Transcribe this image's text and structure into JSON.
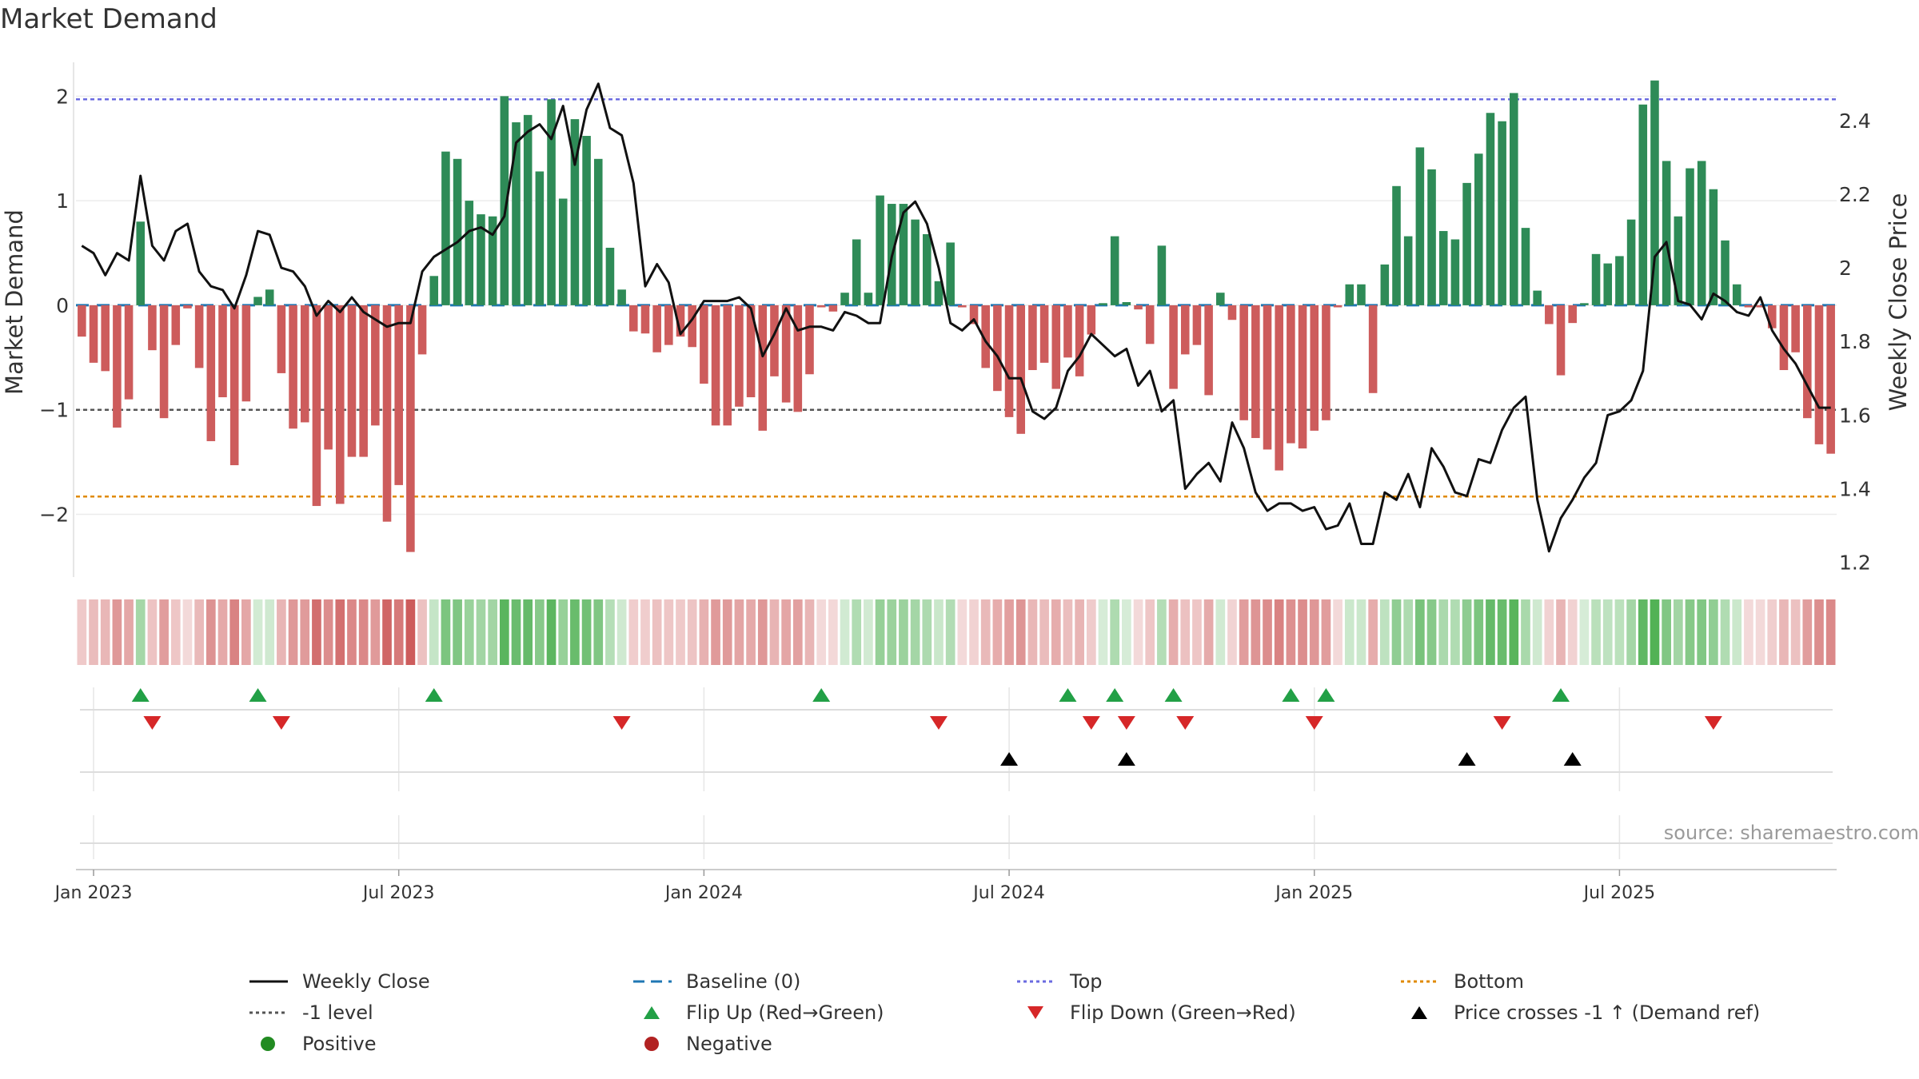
{
  "chart_data": {
    "type": "bar",
    "title": "Market Demand",
    "ylabel": "Market Demand",
    "y2label": "Weekly Close Price",
    "ylim": [
      -2.6,
      2.4
    ],
    "y2lim": [
      1.16,
      2.58
    ],
    "yticks": [
      "−2",
      "−1",
      "0",
      "1",
      "2"
    ],
    "y2ticks": [
      "1.2",
      "1.4",
      "1.6",
      "1.8",
      "2",
      "2.2",
      "2.4"
    ],
    "x_ticks": [
      "Jan 2023",
      "Jul 2023",
      "Jan 2024",
      "Jul 2024",
      "Jan 2025",
      "Jul 2025"
    ],
    "start_date": "2022-12-22",
    "reference_lines": {
      "top": 1.97,
      "baseline": 0,
      "minus_one": -1,
      "bottom": -1.83
    },
    "series": [
      {
        "name": "Market Demand",
        "values": [
          -0.3,
          -0.55,
          -0.63,
          -1.17,
          -0.9,
          0.8,
          -0.43,
          -1.08,
          -0.38,
          -0.03,
          -0.6,
          -1.3,
          -0.88,
          -1.53,
          -0.92,
          0.08,
          0.15,
          -0.65,
          -1.18,
          -1.12,
          -1.92,
          -1.38,
          -1.9,
          -1.45,
          -1.45,
          -1.15,
          -2.07,
          -1.72,
          -2.36,
          -0.47,
          0.28,
          1.47,
          1.4,
          1.0,
          0.87,
          0.85,
          2.0,
          1.75,
          1.82,
          1.28,
          1.97,
          1.02,
          1.78,
          1.62,
          1.4,
          0.55,
          0.15,
          -0.25,
          -0.27,
          -0.45,
          -0.38,
          -0.3,
          -0.4,
          -0.75,
          -1.15,
          -1.15,
          -0.97,
          -0.88,
          -1.2,
          -0.68,
          -0.93,
          -1.02,
          -0.66,
          -0.02,
          -0.06,
          0.12,
          0.63,
          0.12,
          1.05,
          0.97,
          0.97,
          0.82,
          0.68,
          0.23,
          0.6,
          -0.02,
          -0.18,
          -0.6,
          -0.82,
          -1.07,
          -1.23,
          -0.62,
          -0.55,
          -0.8,
          -0.5,
          -0.68,
          -0.28,
          0.02,
          0.66,
          0.03,
          -0.04,
          -0.37,
          0.57,
          -0.8,
          -0.47,
          -0.38,
          -0.86,
          0.12,
          -0.14,
          -1.1,
          -1.27,
          -1.38,
          -1.58,
          -1.32,
          -1.37,
          -1.2,
          -1.1,
          -0.02,
          0.2,
          0.2,
          -0.84,
          0.39,
          1.14,
          0.66,
          1.51,
          1.3,
          0.71,
          0.63,
          1.17,
          1.45,
          1.84,
          1.76,
          2.03,
          0.74,
          0.14,
          -0.18,
          -0.67,
          -0.17,
          0.02,
          0.49,
          0.4,
          0.47,
          0.82,
          1.92,
          2.15,
          1.38,
          0.85,
          1.31,
          1.38,
          1.11,
          0.62,
          0.2,
          -0.02,
          -0.02,
          -0.22,
          -0.62,
          -0.45,
          -1.08,
          -1.33,
          -1.42
        ]
      },
      {
        "name": "Weekly Close",
        "values": [
          2.06,
          2.04,
          1.98,
          2.04,
          2.02,
          2.25,
          2.06,
          2.02,
          2.1,
          2.12,
          1.99,
          1.95,
          1.94,
          1.89,
          1.98,
          2.1,
          2.09,
          2.0,
          1.99,
          1.95,
          1.87,
          1.91,
          1.88,
          1.92,
          1.88,
          1.86,
          1.84,
          1.85,
          1.85,
          1.99,
          2.03,
          2.05,
          2.07,
          2.1,
          2.11,
          2.09,
          2.14,
          2.34,
          2.37,
          2.39,
          2.35,
          2.44,
          2.28,
          2.43,
          2.5,
          2.38,
          2.36,
          2.23,
          1.95,
          2.01,
          1.96,
          1.82,
          1.86,
          1.91,
          1.91,
          1.91,
          1.92,
          1.89,
          1.76,
          1.82,
          1.89,
          1.83,
          1.84,
          1.84,
          1.83,
          1.88,
          1.87,
          1.85,
          1.85,
          2.03,
          2.15,
          2.18,
          2.12,
          2.0,
          1.85,
          1.83,
          1.86,
          1.8,
          1.76,
          1.7,
          1.7,
          1.61,
          1.59,
          1.62,
          1.72,
          1.76,
          1.82,
          1.79,
          1.76,
          1.78,
          1.68,
          1.72,
          1.61,
          1.64,
          1.4,
          1.44,
          1.47,
          1.42,
          1.58,
          1.51,
          1.39,
          1.34,
          1.36,
          1.36,
          1.34,
          1.35,
          1.29,
          1.3,
          1.36,
          1.25,
          1.25,
          1.39,
          1.37,
          1.44,
          1.35,
          1.51,
          1.46,
          1.39,
          1.38,
          1.48,
          1.47,
          1.56,
          1.62,
          1.65,
          1.37,
          1.23,
          1.32,
          1.37,
          1.43,
          1.47,
          1.6,
          1.61,
          1.64,
          1.72,
          2.03,
          2.07,
          1.91,
          1.9,
          1.86,
          1.93,
          1.91,
          1.88,
          1.87,
          1.92,
          1.83,
          1.78,
          1.74,
          1.68,
          1.62,
          1.62
        ]
      }
    ],
    "flip_up_weeks": [
      5,
      15,
      30,
      63,
      84,
      88,
      93,
      103,
      106,
      126
    ],
    "flip_down_weeks": [
      6,
      17,
      46,
      73,
      86,
      89,
      94,
      105,
      121,
      139
    ],
    "price_cross_weeks": [
      79,
      89,
      118,
      127
    ],
    "source": "source: sharemaestro.com",
    "legend": [
      {
        "label": "Weekly Close",
        "symbol": "line",
        "color": "#111111"
      },
      {
        "label": "Baseline (0)",
        "symbol": "dashed",
        "color": "#1f77b4"
      },
      {
        "label": "Top",
        "symbol": "dotted",
        "color": "#6a6ae0"
      },
      {
        "label": "Bottom",
        "symbol": "dotted",
        "color": "#e08a00"
      },
      {
        "label": "-1 level",
        "symbol": "dotted",
        "color": "#555555"
      },
      {
        "label": "Flip Up (Red→Green)",
        "symbol": "triangle-up",
        "color": "#22a046"
      },
      {
        "label": "Flip Down (Green→Red)",
        "symbol": "triangle-down",
        "color": "#d62728"
      },
      {
        "label": "Price crosses -1 ↑ (Demand ref)",
        "symbol": "triangle-up",
        "color": "#000000"
      },
      {
        "label": "Positive",
        "symbol": "circle",
        "color": "#228b22"
      },
      {
        "label": "Negative",
        "symbol": "circle",
        "color": "#b22222"
      }
    ],
    "colors": {
      "positive_bar": "#2e8b57",
      "negative_bar": "#cd5c5c",
      "heat_positive": "#4caf50",
      "heat_negative": "#cd5c5c"
    }
  }
}
